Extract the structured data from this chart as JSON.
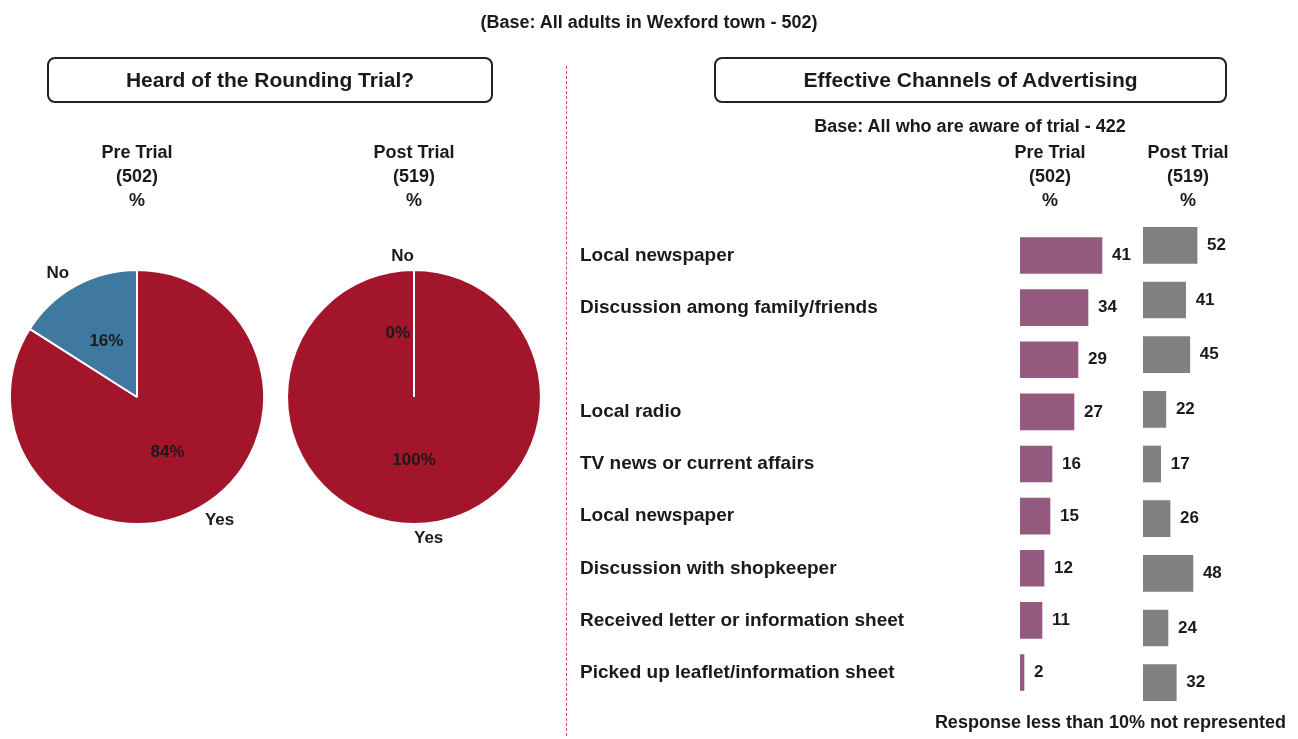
{
  "chart_data": [
    {
      "type": "other",
      "title": "(Base:  All adults in Wexford town - 502)"
    },
    {
      "type": "pie",
      "title": "Heard of the Rounding Trial?",
      "subtitle": "Pre Trial\n(502)\n%",
      "categories": [
        "Yes",
        "No"
      ],
      "values": [
        84,
        16
      ],
      "colors": [
        "#a3152b",
        "#3f79a0"
      ],
      "value_labels": [
        "84%",
        "16%"
      ]
    },
    {
      "type": "pie",
      "subtitle": "Post Trial\n(519)\n%",
      "categories": [
        "Yes",
        "No"
      ],
      "values": [
        100,
        0
      ],
      "colors": [
        "#a3152b",
        "#3f79a0"
      ],
      "value_labels": [
        "100%",
        "0%"
      ]
    },
    {
      "type": "bar",
      "orientation": "horizontal",
      "title": "Effective Channels of Advertising",
      "subtitle": "Base: All who are aware of trial - 422",
      "categories": [
        "Local newspaper",
        "Discussion among family/friends",
        null,
        "Local radio",
        "TV news or current affairs",
        "Local newspaper",
        "Discussion with shopkeeper",
        "Received letter or information sheet",
        "Picked up leaflet/information sheet"
      ],
      "tick_labels": "y",
      "data_labels": true,
      "series": [
        {
          "name": "Pre Trial\n(502)\n%",
          "color": "#955a80",
          "values": [
            41,
            34,
            29,
            27,
            16,
            15,
            12,
            11,
            2
          ]
        }
      ]
    },
    {
      "type": "bar",
      "orientation": "horizontal",
      "categories": [
        null,
        null,
        null,
        null,
        null,
        null,
        null,
        null,
        null
      ],
      "tick_labels": false,
      "data_labels": true,
      "annotations": [
        "Response less than 10% not represented"
      ],
      "series": [
        {
          "name": "Post Trial\n(519)\n%",
          "color": "#808080",
          "values": [
            52,
            41,
            45,
            22,
            17,
            26,
            48,
            24,
            32
          ]
        }
      ]
    }
  ]
}
